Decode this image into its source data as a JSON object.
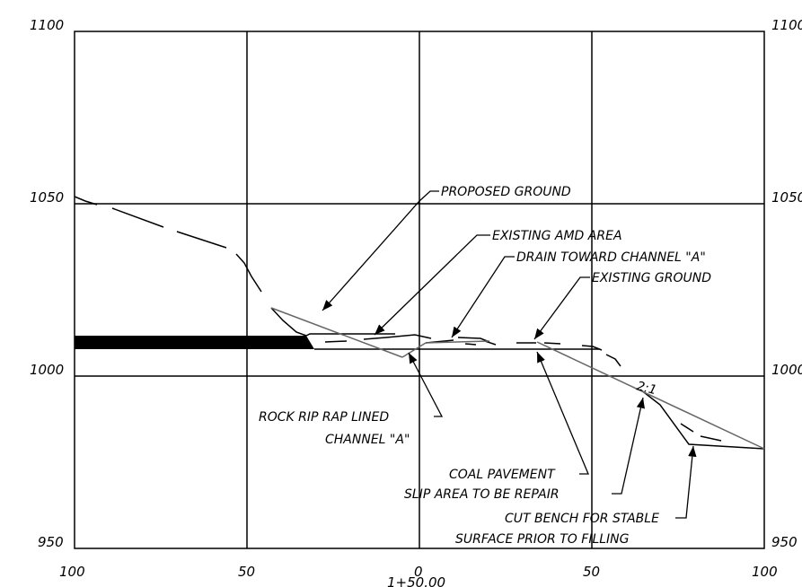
{
  "y_axis_left": [
    "1100",
    "1050",
    "1000",
    "950"
  ],
  "y_axis_right": [
    "1100",
    "1050",
    "1000",
    "950"
  ],
  "x_axis": [
    "100",
    "50",
    "0",
    "50",
    "100"
  ],
  "station_label": "1+50.00",
  "slope_label": "2:1",
  "annotations": {
    "proposed_ground": "PROPOSED GROUND",
    "existing_amd_area": "EXISTING AMD AREA",
    "drain_toward_channel": "DRAIN TOWARD CHANNEL \"A\"",
    "existing_ground": "EXISTING GROUND",
    "rock_rip_rap_line1": "ROCK RIP RAP LINED",
    "rock_rip_rap_line2": "CHANNEL \"A\"",
    "coal_pavement": "COAL PAVEMENT",
    "slip_area": "SLIP AREA TO BE REPAIR",
    "cut_bench_line1": "CUT BENCH FOR STABLE",
    "cut_bench_line2": "SURFACE PRIOR TO FILLING"
  }
}
